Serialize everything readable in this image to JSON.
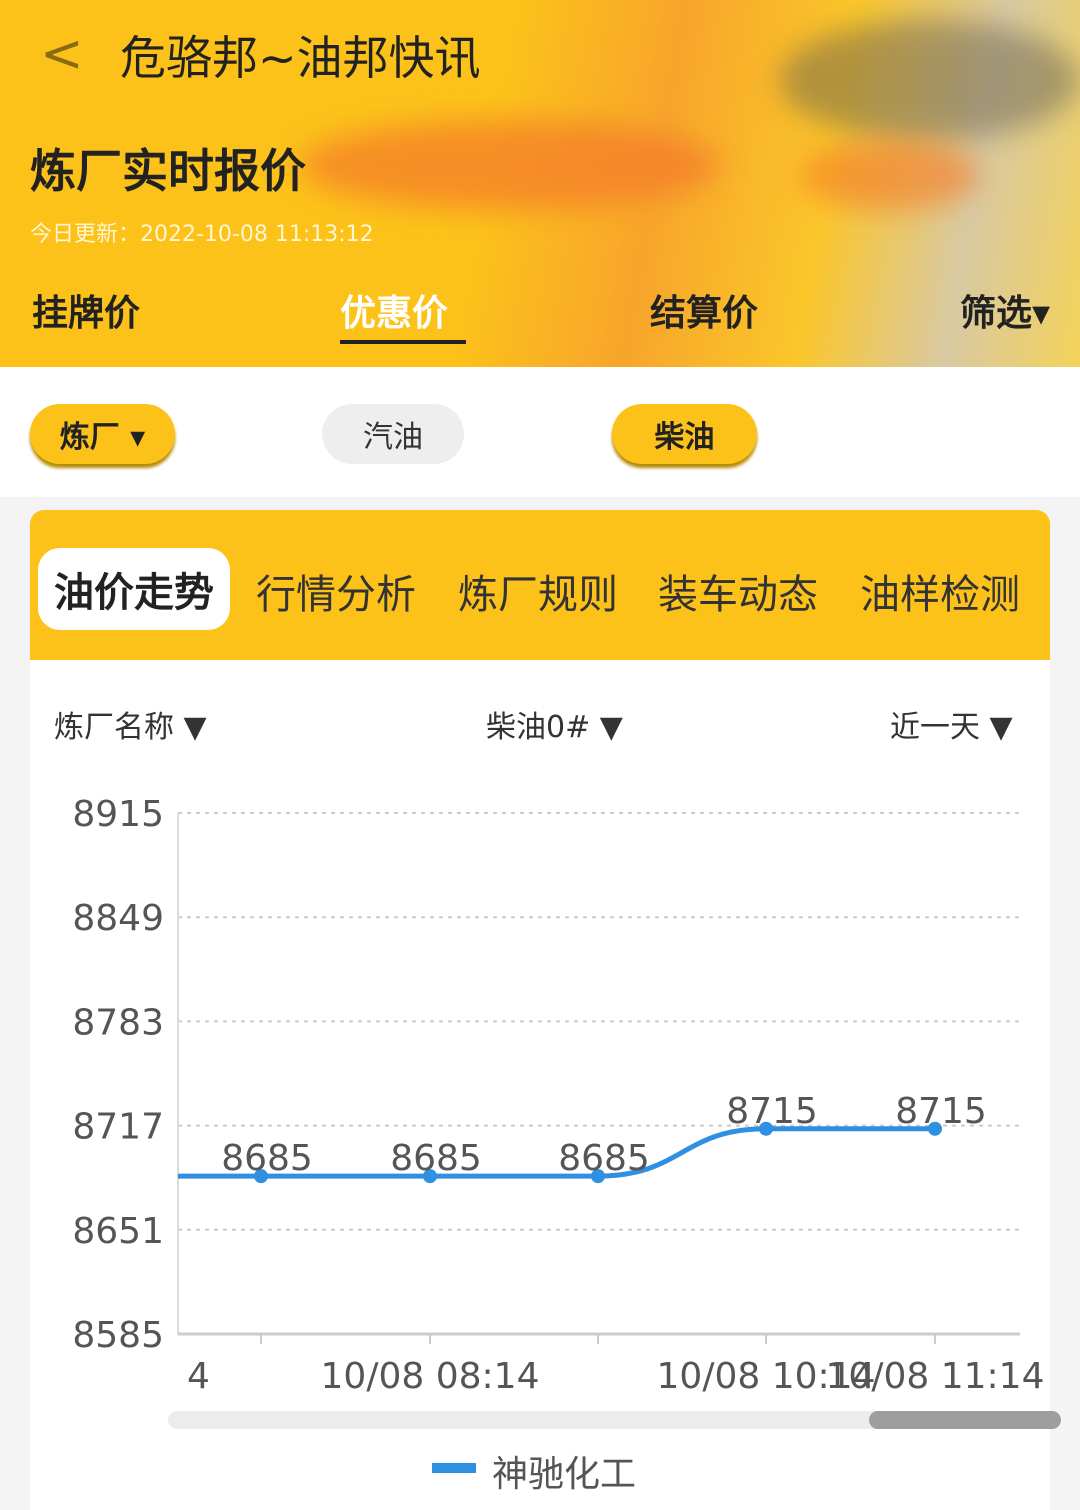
{
  "header": {
    "back_icon": "chevron-left-icon",
    "app_title": "危骆邦~油邦快讯",
    "page_title": "炼厂实时报价",
    "updated": "今日更新：2022-10-08 11:13:12"
  },
  "tabs": [
    {
      "label": "挂牌价"
    },
    {
      "label": "优惠价",
      "active": true
    },
    {
      "label": "结算价"
    },
    {
      "label": "筛选▾"
    }
  ],
  "filters": [
    {
      "label": "炼厂 ▾",
      "selected": true
    },
    {
      "label": "汽油",
      "selected": false
    },
    {
      "label": "柴油",
      "selected": true
    }
  ],
  "subtabs": [
    "油价走势",
    "行情分析",
    "炼厂规则",
    "装车动态",
    "油样检测"
  ],
  "selectors": {
    "refinery": "炼厂名称",
    "product": "柴油0#",
    "range": "近一天"
  },
  "colors": {
    "accent": "#fcc21a",
    "line": "#2f8fe0"
  },
  "chart_data": {
    "type": "line",
    "y_ticks": [
      8915,
      8849,
      8783,
      8717,
      8651,
      8585
    ],
    "ylim": [
      8585,
      8915
    ],
    "x_labels": [
      "4",
      "10/08 08:14",
      "",
      "10/08 10:14",
      "10/08 11:14"
    ],
    "values": [
      8685,
      8685,
      8685,
      8715,
      8715
    ],
    "series": [
      {
        "name": "神驰化工",
        "values": [
          8685,
          8685,
          8685,
          8715,
          8715
        ]
      }
    ],
    "grid": true,
    "legend": "bottom",
    "scrollbar_position": 0.85
  }
}
